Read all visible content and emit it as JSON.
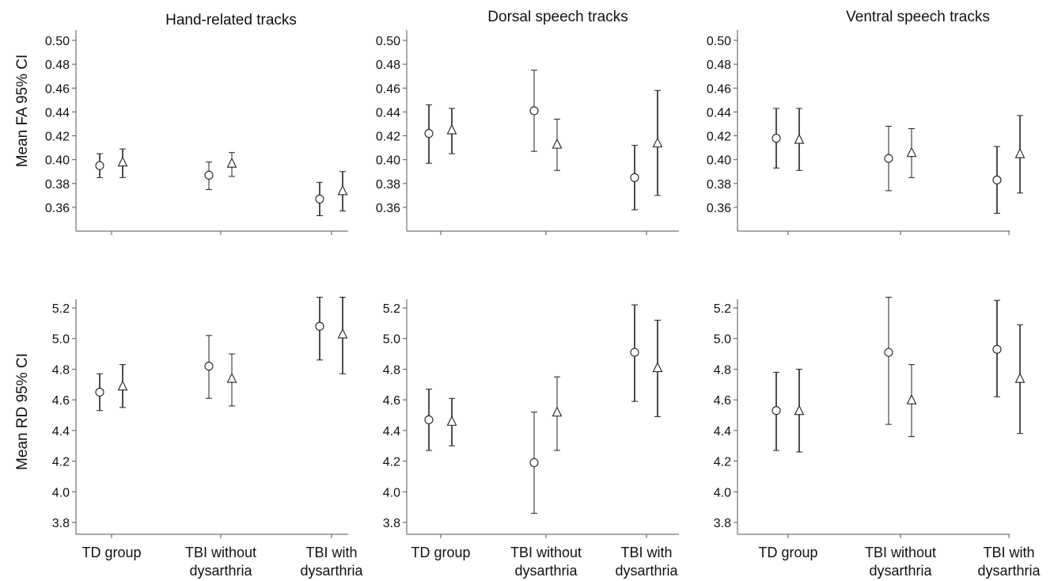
{
  "figure": {
    "column_titles": [
      "Hand-related tracks",
      "Dorsal speech tracks",
      "Ventral speech tracks"
    ],
    "row_labels": [
      "Mean FA 95% CI",
      "Mean RD 95% CI"
    ],
    "categories": [
      [
        "TD group"
      ],
      [
        "TBI without",
        "dysarthria"
      ],
      [
        "TBI with",
        "dysarthria"
      ]
    ],
    "marker_shapes": [
      "circle",
      "triangle"
    ]
  },
  "chart_data": [
    {
      "type": "scatter",
      "panel": "Hand-related tracks / FA",
      "title": "Hand-related tracks",
      "xlabel": "",
      "ylabel": "Mean FA 95% CI",
      "categories": [
        "TD group",
        "TBI without dysarthria",
        "TBI with dysarthria"
      ],
      "ylim": [
        0.345,
        0.505
      ],
      "yticks": [
        "0.36",
        "0.38",
        "0.40",
        "0.42",
        "0.44",
        "0.46",
        "0.48",
        "0.50"
      ],
      "series": [
        {
          "marker": "circle",
          "points": [
            {
              "mean": 0.395,
              "lo": 0.385,
              "hi": 0.405
            },
            {
              "mean": 0.387,
              "lo": 0.375,
              "hi": 0.398
            },
            {
              "mean": 0.367,
              "lo": 0.353,
              "hi": 0.381
            }
          ]
        },
        {
          "marker": "triangle",
          "points": [
            {
              "mean": 0.398,
              "lo": 0.385,
              "hi": 0.409
            },
            {
              "mean": 0.397,
              "lo": 0.386,
              "hi": 0.406
            },
            {
              "mean": 0.374,
              "lo": 0.357,
              "hi": 0.39
            }
          ]
        }
      ]
    },
    {
      "type": "scatter",
      "panel": "Dorsal speech tracks / FA",
      "title": "Dorsal speech tracks",
      "xlabel": "",
      "ylabel": "",
      "categories": [
        "TD group",
        "TBI without dysarthria",
        "TBI with dysarthria"
      ],
      "ylim": [
        0.345,
        0.505
      ],
      "yticks": [
        "0.36",
        "0.38",
        "0.40",
        "0.42",
        "0.44",
        "0.46",
        "0.48",
        "0.50"
      ],
      "series": [
        {
          "marker": "circle",
          "points": [
            {
              "mean": 0.422,
              "lo": 0.397,
              "hi": 0.446
            },
            {
              "mean": 0.441,
              "lo": 0.407,
              "hi": 0.475
            },
            {
              "mean": 0.385,
              "lo": 0.358,
              "hi": 0.412
            }
          ]
        },
        {
          "marker": "triangle",
          "points": [
            {
              "mean": 0.425,
              "lo": 0.405,
              "hi": 0.443
            },
            {
              "mean": 0.413,
              "lo": 0.391,
              "hi": 0.434
            },
            {
              "mean": 0.414,
              "lo": 0.37,
              "hi": 0.458
            }
          ]
        }
      ]
    },
    {
      "type": "scatter",
      "panel": "Ventral speech tracks / FA",
      "title": "Ventral speech tracks",
      "xlabel": "",
      "ylabel": "",
      "categories": [
        "TD group",
        "TBI without dysarthria",
        "TBI with dysarthria"
      ],
      "ylim": [
        0.345,
        0.505
      ],
      "yticks": [
        "0.36",
        "0.38",
        "0.40",
        "0.42",
        "0.44",
        "0.46",
        "0.48",
        "0.50"
      ],
      "series": [
        {
          "marker": "circle",
          "points": [
            {
              "mean": 0.418,
              "lo": 0.393,
              "hi": 0.443
            },
            {
              "mean": 0.401,
              "lo": 0.374,
              "hi": 0.428
            },
            {
              "mean": 0.383,
              "lo": 0.355,
              "hi": 0.411
            }
          ]
        },
        {
          "marker": "triangle",
          "points": [
            {
              "mean": 0.417,
              "lo": 0.391,
              "hi": 0.443
            },
            {
              "mean": 0.406,
              "lo": 0.385,
              "hi": 0.426
            },
            {
              "mean": 0.405,
              "lo": 0.372,
              "hi": 0.437
            }
          ]
        }
      ]
    },
    {
      "type": "scatter",
      "panel": "Hand-related tracks / RD",
      "title": "",
      "xlabel": "",
      "ylabel": "Mean RD 95% CI",
      "categories": [
        "TD group",
        "TBI without dysarthria",
        "TBI with dysarthria"
      ],
      "ylim": [
        3.72,
        5.28
      ],
      "yticks": [
        "3.8",
        "4.0",
        "4.2",
        "4.4",
        "4.6",
        "4.8",
        "5.0",
        "5.2"
      ],
      "series": [
        {
          "marker": "circle",
          "points": [
            {
              "mean": 4.65,
              "lo": 4.53,
              "hi": 4.77
            },
            {
              "mean": 4.82,
              "lo": 4.61,
              "hi": 5.02
            },
            {
              "mean": 5.08,
              "lo": 4.86,
              "hi": 5.27
            }
          ]
        },
        {
          "marker": "triangle",
          "points": [
            {
              "mean": 4.69,
              "lo": 4.55,
              "hi": 4.83
            },
            {
              "mean": 4.74,
              "lo": 4.56,
              "hi": 4.9
            },
            {
              "mean": 5.03,
              "lo": 4.77,
              "hi": 5.27
            }
          ]
        }
      ]
    },
    {
      "type": "scatter",
      "panel": "Dorsal speech tracks / RD",
      "title": "",
      "xlabel": "",
      "ylabel": "",
      "categories": [
        "TD group",
        "TBI without dysarthria",
        "TBI with dysarthria"
      ],
      "ylim": [
        3.72,
        5.28
      ],
      "yticks": [
        "3.8",
        "4.0",
        "4.2",
        "4.4",
        "4.6",
        "4.8",
        "5.0",
        "5.2"
      ],
      "series": [
        {
          "marker": "circle",
          "points": [
            {
              "mean": 4.47,
              "lo": 4.27,
              "hi": 4.67
            },
            {
              "mean": 4.19,
              "lo": 3.86,
              "hi": 4.52
            },
            {
              "mean": 4.91,
              "lo": 4.59,
              "hi": 5.22
            }
          ]
        },
        {
          "marker": "triangle",
          "points": [
            {
              "mean": 4.46,
              "lo": 4.3,
              "hi": 4.61
            },
            {
              "mean": 4.52,
              "lo": 4.27,
              "hi": 4.75
            },
            {
              "mean": 4.81,
              "lo": 4.49,
              "hi": 5.12
            }
          ]
        }
      ]
    },
    {
      "type": "scatter",
      "panel": "Ventral speech tracks / RD",
      "title": "",
      "xlabel": "",
      "ylabel": "",
      "categories": [
        "TD group",
        "TBI without dysarthria",
        "TBI with dysarthria"
      ],
      "ylim": [
        3.72,
        5.28
      ],
      "yticks": [
        "3.8",
        "4.0",
        "4.2",
        "4.4",
        "4.6",
        "4.8",
        "5.0",
        "5.2"
      ],
      "series": [
        {
          "marker": "circle",
          "points": [
            {
              "mean": 4.53,
              "lo": 4.27,
              "hi": 4.78
            },
            {
              "mean": 4.91,
              "lo": 4.44,
              "hi": 5.27
            },
            {
              "mean": 4.93,
              "lo": 4.62,
              "hi": 5.25
            }
          ]
        },
        {
          "marker": "triangle",
          "points": [
            {
              "mean": 4.53,
              "lo": 4.26,
              "hi": 4.8
            },
            {
              "mean": 4.6,
              "lo": 4.36,
              "hi": 4.83
            },
            {
              "mean": 4.74,
              "lo": 4.38,
              "hi": 5.09
            }
          ]
        }
      ]
    }
  ]
}
